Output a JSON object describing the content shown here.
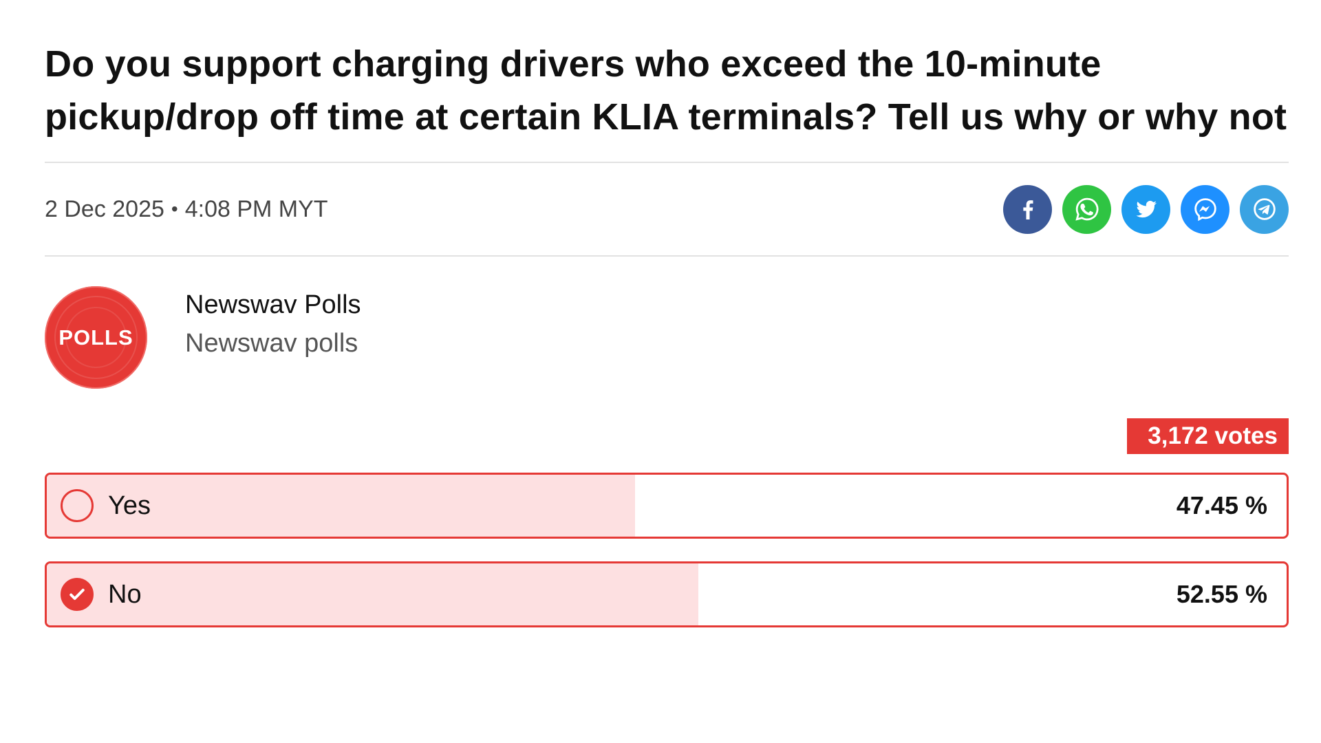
{
  "poll": {
    "question": "Do you support charging drivers who exceed the 10-minute pickup/drop off time at certain KLIA terminals? Tell us why or why not",
    "date": "2 Dec 2025",
    "separator": "•",
    "time": "4:08 PM MYT"
  },
  "share": {
    "buttons": [
      {
        "icon": "facebook-icon",
        "color": "#3b5998"
      },
      {
        "icon": "whatsapp-icon",
        "color": "#2fc443"
      },
      {
        "icon": "twitter-icon",
        "color": "#1d9bf0"
      },
      {
        "icon": "messenger-icon",
        "color": "#1e90ff"
      },
      {
        "icon": "telegram-icon",
        "color": "#3aa3e3"
      }
    ]
  },
  "author": {
    "avatar_text": "POLLS",
    "name": "Newswav Polls",
    "subtitle": "Newswav polls"
  },
  "votes": {
    "label": "3,172 votes"
  },
  "options": [
    {
      "label": "Yes",
      "percent_text": "47.45 %",
      "percent": 47.45,
      "selected": false
    },
    {
      "label": "No",
      "percent_text": "52.55 %",
      "percent": 52.55,
      "selected": true
    }
  ],
  "colors": {
    "accent": "#e53935",
    "fill": "#fde0e1"
  }
}
